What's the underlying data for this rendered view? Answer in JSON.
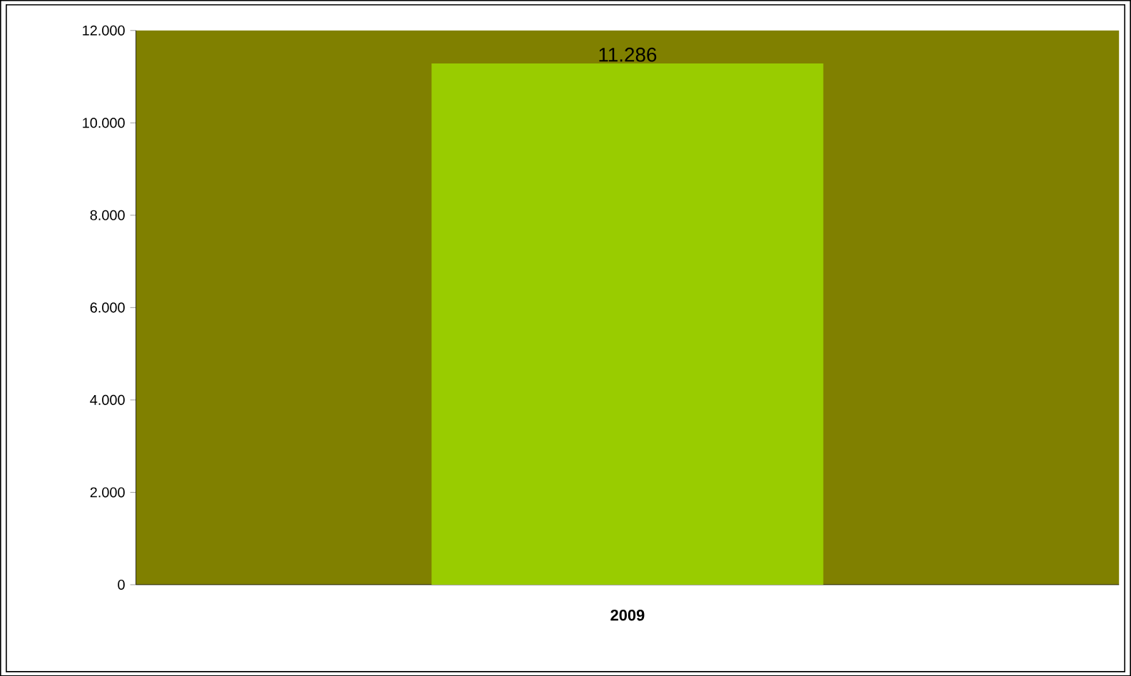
{
  "chart_data": {
    "type": "bar",
    "categories": [
      "2009"
    ],
    "values": [
      11286
    ],
    "color": "#99cc00",
    "value_labels": [
      "11.286"
    ],
    "ylim": [
      0,
      12000
    ],
    "yticks": [
      {
        "value": 0,
        "label": "0"
      },
      {
        "value": 2000,
        "label": "2.000"
      },
      {
        "value": 4000,
        "label": "4.000"
      },
      {
        "value": 6000,
        "label": "6.000"
      },
      {
        "value": 8000,
        "label": "8.000"
      },
      {
        "value": 10000,
        "label": "10.000"
      },
      {
        "value": 12000,
        "label": "12.000"
      }
    ],
    "grid": false
  }
}
